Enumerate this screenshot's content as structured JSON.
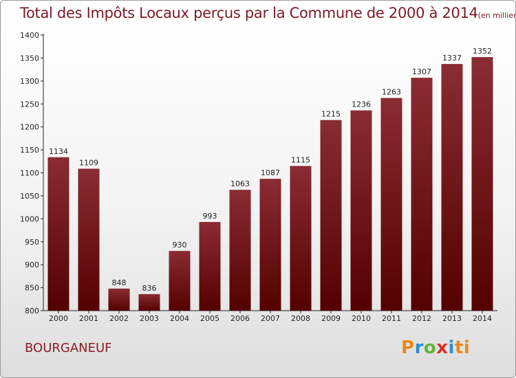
{
  "title": "Total des Impôts Locaux perçus par la Commune de 2000 à 2014",
  "title_unit": "(en milliers d'€)",
  "commune": "BOURGANEUF",
  "brand": [
    "P",
    "r",
    "o",
    "x",
    "i",
    "ti"
  ],
  "colors": {
    "bar_top": "#8a2c33",
    "bar_bottom": "#540000",
    "title": "#7a1a26",
    "commune": "#8e1b24"
  },
  "chart_data": {
    "type": "bar",
    "title": "Total des Impôts Locaux perçus par la Commune de 2000 à 2014",
    "xlabel": "",
    "ylabel": "",
    "categories": [
      "2000",
      "2001",
      "2002",
      "2003",
      "2004",
      "2005",
      "2006",
      "2007",
      "2008",
      "2009",
      "2010",
      "2011",
      "2012",
      "2013",
      "2014"
    ],
    "values": [
      1134,
      1109,
      848,
      836,
      930,
      993,
      1063,
      1087,
      1115,
      1215,
      1236,
      1263,
      1307,
      1337,
      1352
    ],
    "ylim": [
      800,
      1400
    ],
    "yticks": [
      800,
      850,
      900,
      950,
      1000,
      1050,
      1100,
      1150,
      1200,
      1250,
      1300,
      1350,
      1400
    ],
    "grid": false
  }
}
